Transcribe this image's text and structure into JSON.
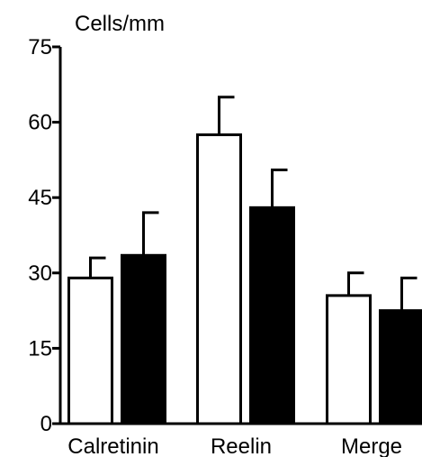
{
  "chart_data": {
    "type": "bar",
    "ylabel": "Cells/mm",
    "ylim": [
      0,
      75
    ],
    "yticks": [
      "0",
      "15",
      "30",
      "45",
      "60",
      "75"
    ],
    "categories": [
      "Calretinin",
      "Reelin",
      "Merge"
    ],
    "series": [
      {
        "fill": "#ffffff",
        "values": [
          29,
          57.5,
          25.5
        ],
        "errors": [
          4,
          7.5,
          4.5
        ]
      },
      {
        "fill": "#000000",
        "values": [
          33.5,
          43,
          22.5
        ],
        "errors": [
          8.5,
          7.5,
          6.5
        ]
      }
    ],
    "grid": false,
    "legend": "none",
    "colors": {
      "axis": "#000000",
      "open_bar": "#ffffff",
      "filled_bar": "#000000"
    }
  }
}
